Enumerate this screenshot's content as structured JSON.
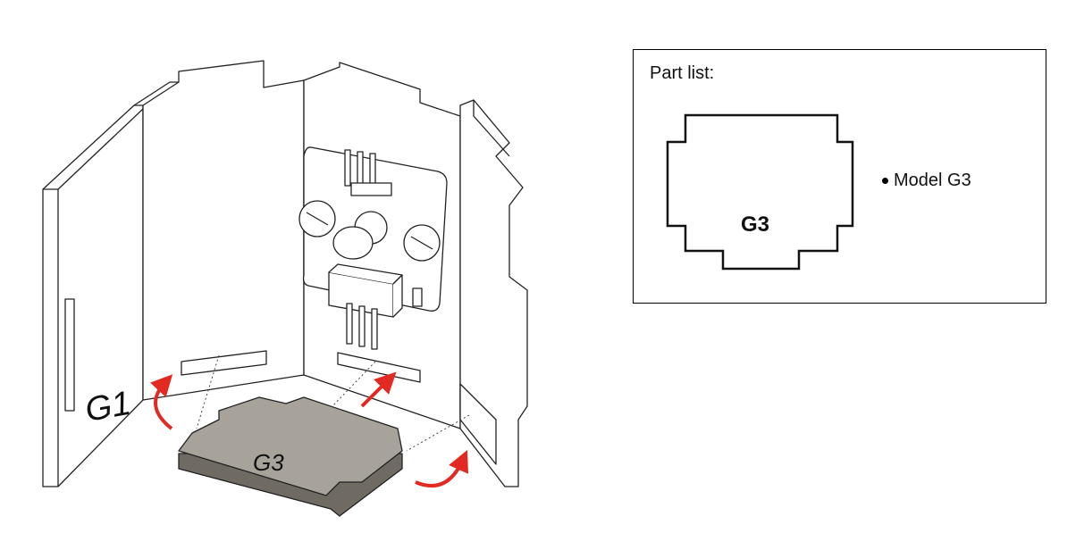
{
  "assembly": {
    "left_panel_label": "G1",
    "bottom_part_label": "G3"
  },
  "part_list": {
    "title": "Part list:",
    "shape_label": "G3",
    "items": [
      "Model G3"
    ]
  },
  "colors": {
    "arrow": "#e32a22",
    "part_top": "#a8a39a",
    "part_side": "#6f6b63",
    "outline": "#222222"
  }
}
